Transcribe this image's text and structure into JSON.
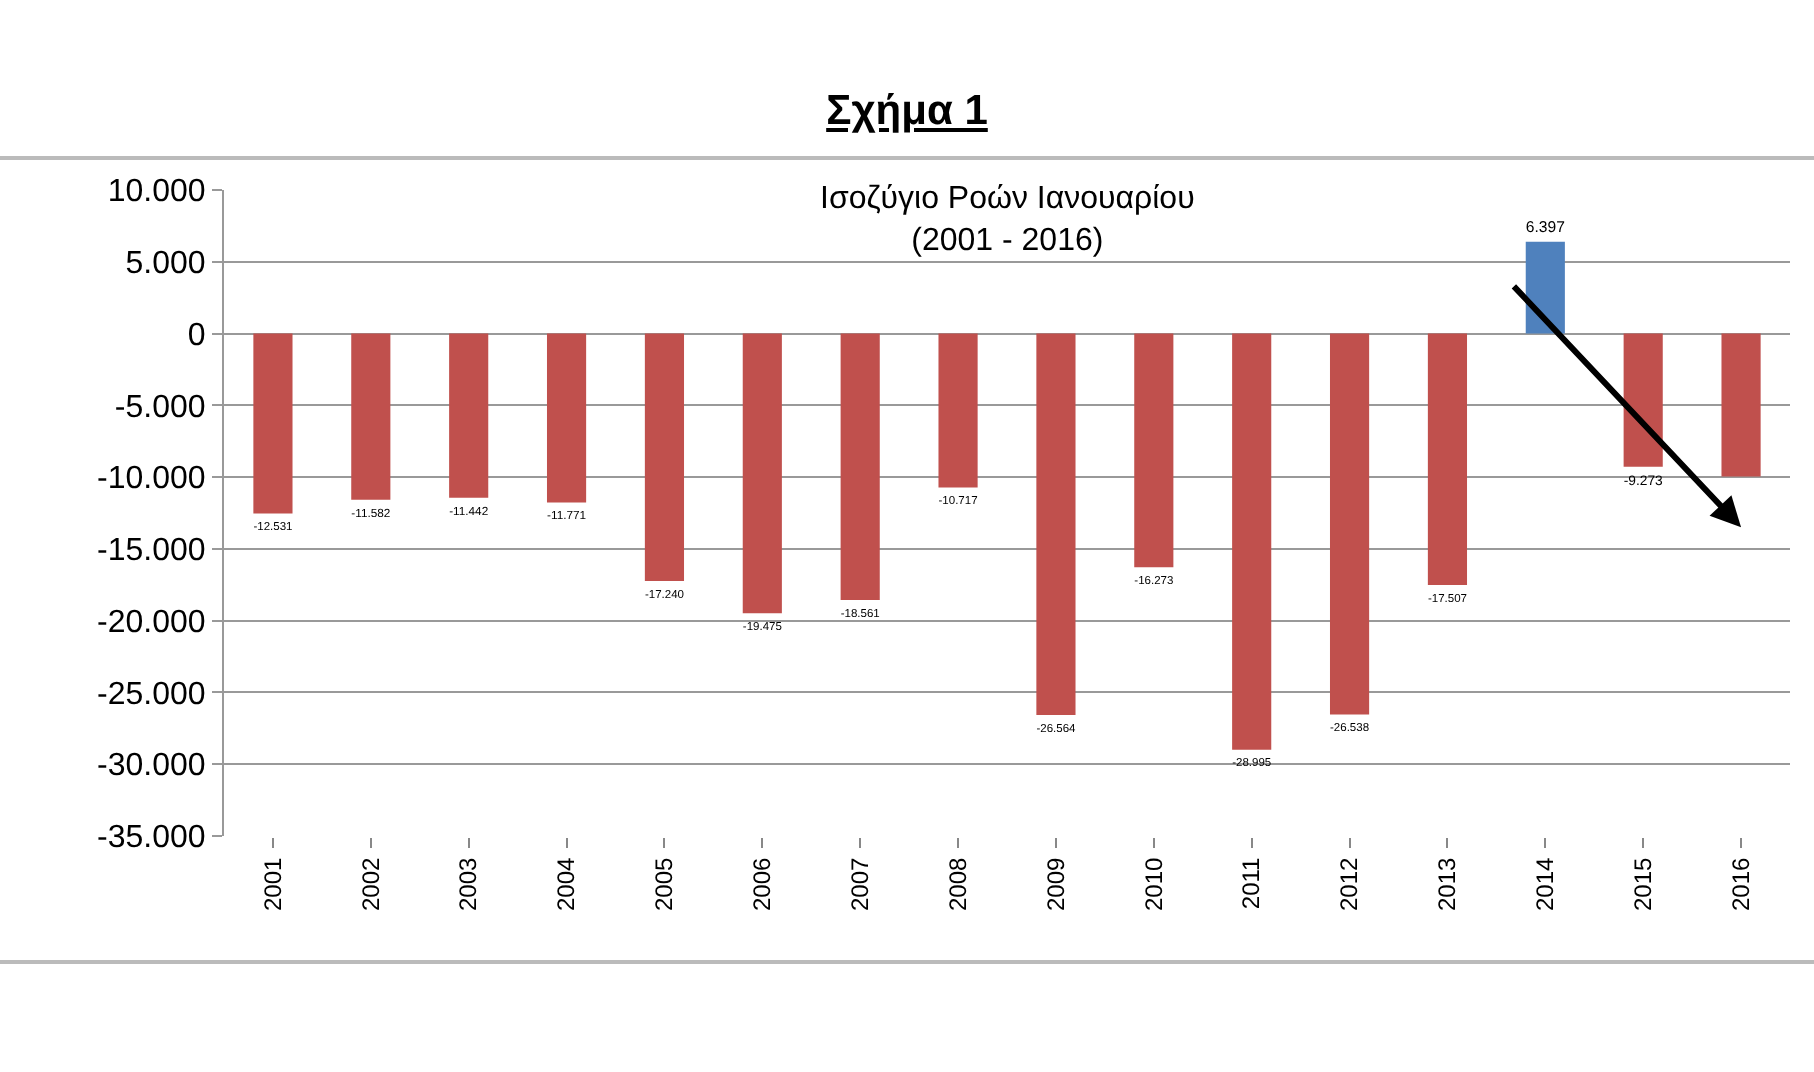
{
  "chart_data": {
    "type": "bar",
    "title": "Σχήμα 1",
    "subtitle": "Ισοζύγιο Ροών Ιανουαρίου\n(2001 - 2016)",
    "categories": [
      "2001",
      "2002",
      "2003",
      "2004",
      "2005",
      "2006",
      "2007",
      "2008",
      "2009",
      "2010",
      "2011",
      "2012",
      "2013",
      "2014",
      "2015",
      "2016"
    ],
    "values": [
      -12531,
      -11582,
      -11442,
      -11771,
      -17240,
      -19475,
      -18561,
      -10717,
      -26564,
      -16273,
      -28995,
      -26538,
      -17507,
      6397,
      -9273,
      -9950
    ],
    "colors": [
      "#c0504d",
      "#c0504d",
      "#c0504d",
      "#c0504d",
      "#c0504d",
      "#c0504d",
      "#c0504d",
      "#c0504d",
      "#c0504d",
      "#c0504d",
      "#c0504d",
      "#c0504d",
      "#c0504d",
      "#4f81bd",
      "#c0504d",
      "#c0504d"
    ],
    "value_labels": [
      "-12.531",
      "-11.582",
      "-11.442",
      "-11.771",
      "-17.240",
      "-19.475",
      "-18.561",
      "-10.717",
      "-26.564",
      "-16.273",
      "-28.995",
      "-26.538",
      "-17.507",
      "6.397",
      "-9.273",
      null
    ],
    "ylim": [
      -35000,
      10000
    ],
    "yticks": [
      {
        "value": -35000,
        "label": "-35.000"
      },
      {
        "value": -30000,
        "label": "-30.000"
      },
      {
        "value": -25000,
        "label": "-25.000"
      },
      {
        "value": -20000,
        "label": "-20.000"
      },
      {
        "value": -15000,
        "label": "-15.000"
      },
      {
        "value": -10000,
        "label": "-10.000"
      },
      {
        "value": -5000,
        "label": "-5.000"
      },
      {
        "value": 0,
        "label": "0"
      },
      {
        "value": 5000,
        "label": "5.000"
      },
      {
        "value": 10000,
        "label": "10.000"
      }
    ],
    "grid": "y",
    "legend": false
  }
}
